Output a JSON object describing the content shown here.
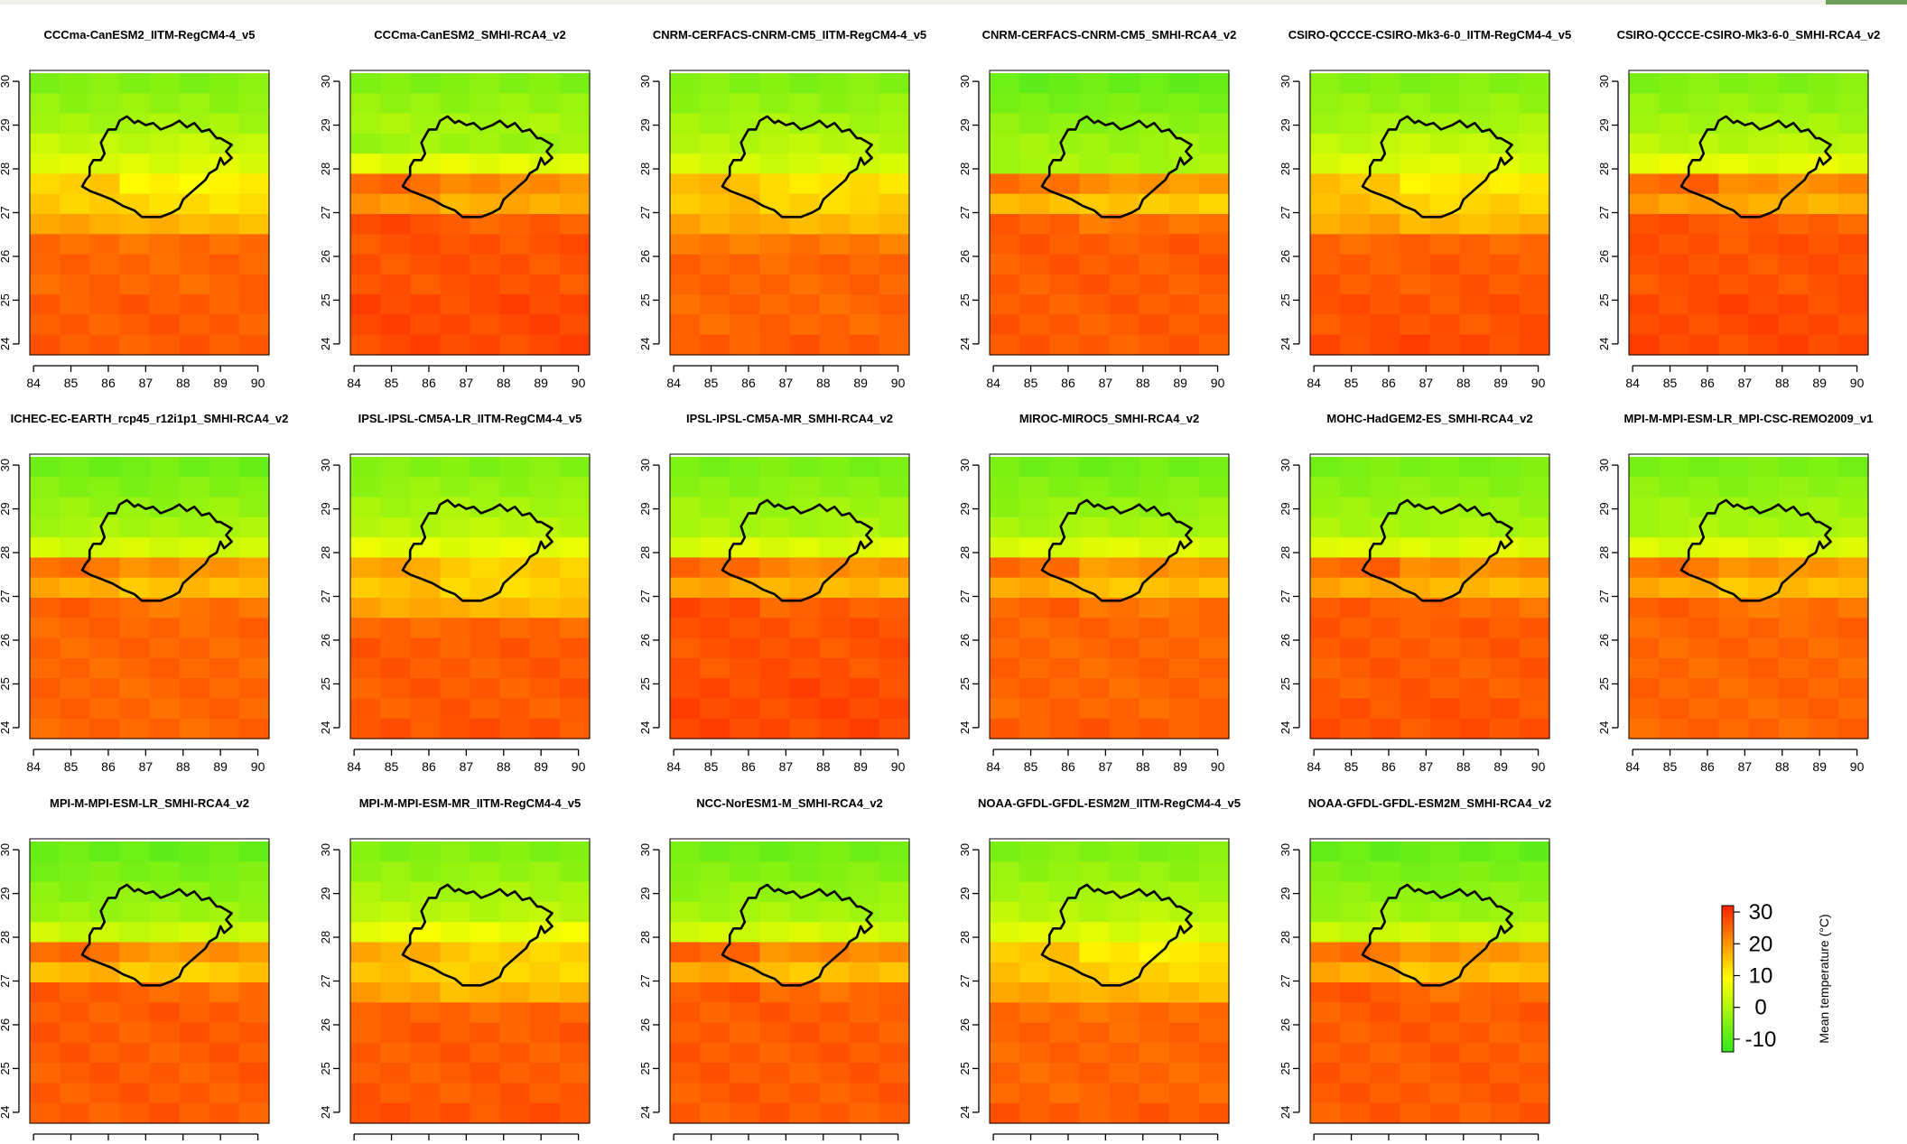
{
  "figure": {
    "panel_titles": [
      "CCCma-CanESM2_IITM-RegCM4-4_v5",
      "CCCma-CanESM2_SMHI-RCA4_v2",
      "CNRM-CERFACS-CNRM-CM5_IITM-RegCM4-4_v5",
      "CNRM-CERFACS-CNRM-CM5_SMHI-RCA4_v2",
      "CSIRO-QCCCE-CSIRO-Mk3-6-0_IITM-RegCM4-4_v5",
      "CSIRO-QCCCE-CSIRO-Mk3-6-0_SMHI-RCA4_v2",
      "ICHEC-EC-EARTH_rcp45_r12i1p1_SMHI-RCA4_v2",
      "IPSL-IPSL-CM5A-LR_IITM-RegCM4-4_v5",
      "IPSL-IPSL-CM5A-MR_SMHI-RCA4_v2",
      "MIROC-MIROC5_SMHI-RCA4_v2",
      "MOHC-HadGEM2-ES_SMHI-RCA4_v2",
      "MPI-M-MPI-ESM-LR_MPI-CSC-REMO2009_v1",
      "MPI-M-MPI-ESM-LR_SMHI-RCA4_v2",
      "MPI-M-MPI-ESM-MR_IITM-RegCM4-4_v5",
      "NCC-NorESM1-M_SMHI-RCA4_v2",
      "NOAA-GFDL-GFDL-ESM2M_IITM-RegCM4-4_v5",
      "NOAA-GFDL-GFDL-ESM2M_SMHI-RCA4_v2"
    ]
  },
  "chart_data": {
    "type": "heatmap",
    "layout": "3 rows x 6 columns of map panels (17 panels)",
    "x_ticks": [
      84,
      85,
      86,
      87,
      88,
      89,
      90
    ],
    "y_ticks": [
      24,
      25,
      26,
      27,
      28,
      29,
      30
    ],
    "xlim": [
      83.9,
      90.3
    ],
    "ylim": [
      23.75,
      30.25
    ],
    "colorbar": {
      "label": "Mean temperature (°C)",
      "ticks": [
        30,
        20,
        10,
        0,
        -10
      ],
      "range": [
        -14,
        32
      ],
      "colors": {
        "low": "#33e81e",
        "mid": "#ffff00",
        "high": "#ff2200"
      },
      "placement": "right of bottom row"
    },
    "grid_cols": 8,
    "grid_rows": 14,
    "panels": [
      {
        "title": "CCCma-CanESM2_IITM-RegCM4-4_v5",
        "profile": [
          -5,
          -3,
          -1,
          2,
          5,
          11,
          13,
          17,
          24,
          25,
          25,
          26,
          26,
          26
        ]
      },
      {
        "title": "CCCma-CanESM2_SMHI-RCA4_v2",
        "profile": [
          -5,
          -3,
          -1,
          -2,
          6,
          22,
          18,
          26,
          27,
          27,
          27,
          28,
          28,
          28
        ]
      },
      {
        "title": "CNRM-CERFACS-CNRM-CM5_IITM-RegCM4-4_v5",
        "profile": [
          -5,
          -3,
          -1,
          1,
          4,
          13,
          14,
          17,
          23,
          25,
          25,
          25,
          25,
          26
        ]
      },
      {
        "title": "CNRM-CERFACS-CNRM-CM5_SMHI-RCA4_v2",
        "profile": [
          -8,
          -6,
          -4,
          -2,
          -1,
          21,
          15,
          24,
          26,
          26,
          26,
          26,
          26,
          26
        ]
      },
      {
        "title": "CSIRO-QCCCE-CSIRO-Mk3-6-0_IITM-RegCM4-4_v5",
        "profile": [
          -5,
          -3,
          -1,
          2,
          5,
          12,
          14,
          17,
          25,
          26,
          26,
          27,
          27,
          28
        ]
      },
      {
        "title": "CSIRO-QCCCE-CSIRO-Mk3-6-0_SMHI-RCA4_v2",
        "profile": [
          -5,
          -3,
          -1,
          1,
          6,
          22,
          18,
          26,
          27,
          27,
          27,
          28,
          28,
          28
        ]
      },
      {
        "title": "ICHEC-EC-EARTH_rcp45_r12i1p1_SMHI-RCA4_v2",
        "profile": [
          -7,
          -5,
          -3,
          -1,
          4,
          21,
          16,
          24,
          25,
          25,
          25,
          25,
          25,
          25
        ]
      },
      {
        "title": "IPSL-IPSL-CM5A-LR_IITM-RegCM4-4_v5",
        "profile": [
          -5,
          -3,
          -1,
          1,
          6,
          15,
          14,
          17,
          25,
          26,
          26,
          26,
          26,
          27
        ]
      },
      {
        "title": "IPSL-IPSL-CM5A-MR_SMHI-RCA4_v2",
        "profile": [
          -6,
          -4,
          -2,
          -1,
          5,
          22,
          17,
          26,
          27,
          27,
          27,
          28,
          28,
          28
        ]
      },
      {
        "title": "MIROC-MIROC5_SMHI-RCA4_v2",
        "profile": [
          -7,
          -5,
          -3,
          -1,
          5,
          21,
          16,
          24,
          25,
          25,
          25,
          25,
          25,
          26
        ]
      },
      {
        "title": "MOHC-HadGEM2-ES_SMHI-RCA4_v2",
        "profile": [
          -6,
          -4,
          -2,
          -1,
          5,
          22,
          17,
          25,
          26,
          26,
          26,
          26,
          27,
          27
        ]
      },
      {
        "title": "MPI-M-MPI-ESM-LR_MPI-CSC-REMO2009_v1",
        "profile": [
          -6,
          -4,
          -2,
          -1,
          5,
          21,
          16,
          24,
          25,
          25,
          25,
          25,
          25,
          25
        ]
      },
      {
        "title": "MPI-M-MPI-ESM-LR_SMHI-RCA4_v2",
        "profile": [
          -8,
          -6,
          -4,
          -2,
          3,
          21,
          15,
          25,
          26,
          26,
          26,
          26,
          26,
          26
        ]
      },
      {
        "title": "MPI-M-MPI-ESM-MR_IITM-RegCM4-4_v5",
        "profile": [
          -5,
          -3,
          -1,
          1,
          7,
          15,
          14,
          17,
          25,
          26,
          26,
          26,
          26,
          27
        ]
      },
      {
        "title": "NCC-NorESM1-M_SMHI-RCA4_v2",
        "profile": [
          -7,
          -5,
          -3,
          -1,
          4,
          22,
          16,
          25,
          26,
          26,
          26,
          26,
          26,
          26
        ]
      },
      {
        "title": "NOAA-GFDL-GFDL-ESM2M_IITM-RegCM4-4_v5",
        "profile": [
          -5,
          -3,
          -1,
          1,
          5,
          12,
          14,
          17,
          24,
          25,
          25,
          25,
          25,
          26
        ]
      },
      {
        "title": "NOAA-GFDL-GFDL-ESM2M_SMHI-RCA4_v2",
        "profile": [
          -8,
          -6,
          -4,
          -2,
          3,
          21,
          16,
          25,
          26,
          26,
          26,
          26,
          26,
          26
        ]
      }
    ],
    "basin_outline_lonlat": [
      [
        85.3,
        27.6
      ],
      [
        85.4,
        27.75
      ],
      [
        85.5,
        27.85
      ],
      [
        85.5,
        28.05
      ],
      [
        85.6,
        28.2
      ],
      [
        85.8,
        28.2
      ],
      [
        85.9,
        28.35
      ],
      [
        85.8,
        28.6
      ],
      [
        85.9,
        28.75
      ],
      [
        86.0,
        28.9
      ],
      [
        86.2,
        28.9
      ],
      [
        86.3,
        29.1
      ],
      [
        86.5,
        29.2
      ],
      [
        86.7,
        29.05
      ],
      [
        86.8,
        29.1
      ],
      [
        87.0,
        29.0
      ],
      [
        87.2,
        29.05
      ],
      [
        87.4,
        28.9
      ],
      [
        87.7,
        29.0
      ],
      [
        87.9,
        29.1
      ],
      [
        88.1,
        28.95
      ],
      [
        88.3,
        29.05
      ],
      [
        88.5,
        28.85
      ],
      [
        88.7,
        28.9
      ],
      [
        88.9,
        28.7
      ],
      [
        89.0,
        28.7
      ],
      [
        89.3,
        28.55
      ],
      [
        89.15,
        28.4
      ],
      [
        89.3,
        28.25
      ],
      [
        89.1,
        28.1
      ],
      [
        89.0,
        28.25
      ],
      [
        88.9,
        28.0
      ],
      [
        88.7,
        27.9
      ],
      [
        88.6,
        27.75
      ],
      [
        88.4,
        27.6
      ],
      [
        88.2,
        27.45
      ],
      [
        88.0,
        27.3
      ],
      [
        87.9,
        27.1
      ],
      [
        87.7,
        27.0
      ],
      [
        87.4,
        26.9
      ],
      [
        87.1,
        26.9
      ],
      [
        86.9,
        26.9
      ],
      [
        86.7,
        27.05
      ],
      [
        86.4,
        27.15
      ],
      [
        86.1,
        27.3
      ],
      [
        85.8,
        27.4
      ],
      [
        85.5,
        27.5
      ],
      [
        85.3,
        27.6
      ]
    ]
  }
}
